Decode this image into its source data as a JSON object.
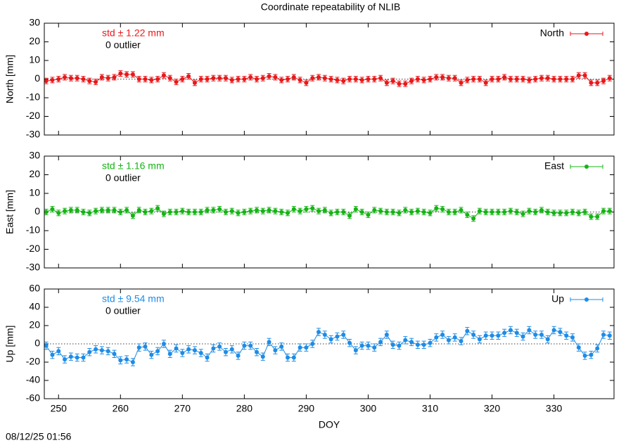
{
  "title": "Coordinate repeatability of NLIB",
  "timestamp": "08/12/25 01:56",
  "chart_data": [
    {
      "type": "errorbar",
      "ylabel": "North [mm]",
      "annotation": "std ± 1.22 mm",
      "outliers": "0 outlier",
      "xlim": [
        247.7,
        339.7
      ],
      "xticks": [
        250,
        260,
        270,
        280,
        290,
        300,
        310,
        320,
        330
      ],
      "ylim": [
        -30,
        30
      ],
      "yticks": [
        -30,
        -20,
        -10,
        0,
        10,
        20,
        30
      ],
      "legend": "top-right",
      "x": [
        248,
        249,
        250,
        251,
        252,
        253,
        254,
        255,
        256,
        257,
        258,
        259,
        260,
        261,
        262,
        263,
        264,
        265,
        266,
        267,
        268,
        269,
        270,
        271,
        272,
        273,
        274,
        275,
        276,
        277,
        278,
        279,
        280,
        281,
        282,
        283,
        284,
        285,
        286,
        287,
        288,
        289,
        290,
        291,
        292,
        293,
        294,
        295,
        296,
        297,
        298,
        299,
        300,
        301,
        302,
        303,
        304,
        305,
        306,
        307,
        308,
        309,
        310,
        311,
        312,
        313,
        314,
        315,
        316,
        317,
        318,
        319,
        320,
        321,
        322,
        323,
        324,
        325,
        326,
        327,
        328,
        329,
        330,
        331,
        332,
        333,
        334,
        335,
        336,
        337,
        338,
        339
      ],
      "series": [
        {
          "name": "North",
          "color": "#e8181a",
          "error": 1.5,
          "values": [
            -1,
            -0.5,
            0,
            1,
            0.5,
            0.5,
            0,
            -1,
            -1.5,
            1,
            0.5,
            1,
            3,
            2.5,
            2.5,
            0,
            0,
            -0.5,
            0,
            2,
            0.5,
            -1.5,
            0,
            1.5,
            -2,
            0,
            0,
            0.5,
            0.5,
            0.5,
            -0.5,
            0,
            0,
            1,
            0,
            0.5,
            1.5,
            1,
            -0.5,
            0,
            1,
            -0.5,
            -2,
            0.5,
            1,
            0.5,
            0,
            -0.5,
            -1,
            0,
            0,
            -0.5,
            0,
            0,
            0.5,
            -2,
            -1,
            -2.5,
            -2.5,
            -1,
            0,
            -0.5,
            0,
            1,
            1,
            0.5,
            0.5,
            -2,
            -0.5,
            0,
            0,
            -2,
            0,
            0,
            1,
            0,
            0,
            0,
            -0.5,
            0,
            0.5,
            0.5,
            0,
            0,
            0,
            0,
            2,
            2,
            -2,
            -2,
            -1,
            0.5
          ]
        }
      ]
    },
    {
      "type": "errorbar",
      "ylabel": "East [mm]",
      "annotation": "std ± 1.16 mm",
      "outliers": "0 outlier",
      "xlim": [
        247.7,
        339.7
      ],
      "xticks": [
        250,
        260,
        270,
        280,
        290,
        300,
        310,
        320,
        330
      ],
      "ylim": [
        -30,
        30
      ],
      "yticks": [
        -30,
        -20,
        -10,
        0,
        10,
        20,
        30
      ],
      "legend": "top-right",
      "x": [
        248,
        249,
        250,
        251,
        252,
        253,
        254,
        255,
        256,
        257,
        258,
        259,
        260,
        261,
        262,
        263,
        264,
        265,
        266,
        267,
        268,
        269,
        270,
        271,
        272,
        273,
        274,
        275,
        276,
        277,
        278,
        279,
        280,
        281,
        282,
        283,
        284,
        285,
        286,
        287,
        288,
        289,
        290,
        291,
        292,
        293,
        294,
        295,
        296,
        297,
        298,
        299,
        300,
        301,
        302,
        303,
        304,
        305,
        306,
        307,
        308,
        309,
        310,
        311,
        312,
        313,
        314,
        315,
        316,
        317,
        318,
        319,
        320,
        321,
        322,
        323,
        324,
        325,
        326,
        327,
        328,
        329,
        330,
        331,
        332,
        333,
        334,
        335,
        336,
        337,
        338,
        339
      ],
      "series": [
        {
          "name": "East",
          "color": "#14b414",
          "error": 1.5,
          "values": [
            0,
            1.5,
            -0.5,
            0.5,
            1,
            1,
            0,
            -0.5,
            0.5,
            1,
            1,
            1,
            0,
            1,
            -2,
            1,
            0,
            0.5,
            2,
            -1,
            0,
            0,
            0.5,
            0,
            0,
            0,
            1,
            1,
            1.5,
            0,
            0.5,
            -0.5,
            0,
            0.5,
            1,
            0.5,
            1,
            0.5,
            0,
            -0.5,
            1.5,
            0.5,
            1.5,
            2,
            0.5,
            1,
            -0.5,
            0,
            0,
            -2,
            1.5,
            0,
            -1.5,
            1,
            0.5,
            0,
            0,
            -0.5,
            1,
            0,
            0.5,
            0,
            -0.5,
            2,
            1.5,
            0,
            0,
            1,
            -1.5,
            -3.5,
            0.5,
            0,
            0,
            0,
            0,
            0.5,
            0,
            -1,
            0.5,
            0,
            1,
            0,
            -0.5,
            -0.5,
            -0.5,
            0,
            -0.5,
            0,
            -2.5,
            -2.5,
            0.5,
            0.5
          ]
        }
      ]
    },
    {
      "type": "errorbar",
      "ylabel": "Up [mm]",
      "xlabel": "DOY",
      "annotation": "std ± 9.54 mm",
      "outliers": "0 outlier",
      "xlim": [
        247.7,
        339.7
      ],
      "xticks": [
        250,
        260,
        270,
        280,
        290,
        300,
        310,
        320,
        330
      ],
      "ylim": [
        -60,
        60
      ],
      "yticks": [
        -60,
        -40,
        -20,
        0,
        20,
        40,
        60
      ],
      "legend": "top-right",
      "x": [
        248,
        249,
        250,
        251,
        252,
        253,
        254,
        255,
        256,
        257,
        258,
        259,
        260,
        261,
        262,
        263,
        264,
        265,
        266,
        267,
        268,
        269,
        270,
        271,
        272,
        273,
        274,
        275,
        276,
        277,
        278,
        279,
        280,
        281,
        282,
        283,
        284,
        285,
        286,
        287,
        288,
        289,
        290,
        291,
        292,
        293,
        294,
        295,
        296,
        297,
        298,
        299,
        300,
        301,
        302,
        303,
        304,
        305,
        306,
        307,
        308,
        309,
        310,
        311,
        312,
        313,
        314,
        315,
        316,
        317,
        318,
        319,
        320,
        321,
        322,
        323,
        324,
        325,
        326,
        327,
        328,
        329,
        330,
        331,
        332,
        333,
        334,
        335,
        336,
        337,
        338,
        339
      ],
      "series": [
        {
          "name": "Up",
          "color": "#1e8ce6",
          "error": 4,
          "values": [
            -2,
            -12,
            -8,
            -17,
            -14,
            -15,
            -15,
            -9,
            -6,
            -7,
            -8,
            -11,
            -18,
            -17,
            -20,
            -4,
            -3,
            -12,
            -8,
            0,
            -11,
            -5,
            -10,
            -6,
            -7,
            -10,
            -15,
            -5,
            -3,
            -9,
            -6,
            -13,
            -2,
            -2,
            -9,
            -14,
            2,
            -7,
            -3,
            -15,
            -15,
            -4,
            -4,
            0,
            13,
            10,
            5,
            8,
            10,
            1,
            -7,
            -2,
            -2,
            -4,
            2,
            10,
            -1,
            -2,
            4,
            2,
            -1,
            -1,
            1,
            7,
            10,
            4,
            7,
            3,
            14,
            10,
            5,
            9,
            9,
            9,
            12,
            15,
            12,
            8,
            15,
            10,
            10,
            5,
            15,
            13,
            9,
            7,
            -4,
            -13,
            -12,
            -5,
            10,
            9
          ]
        }
      ]
    }
  ]
}
